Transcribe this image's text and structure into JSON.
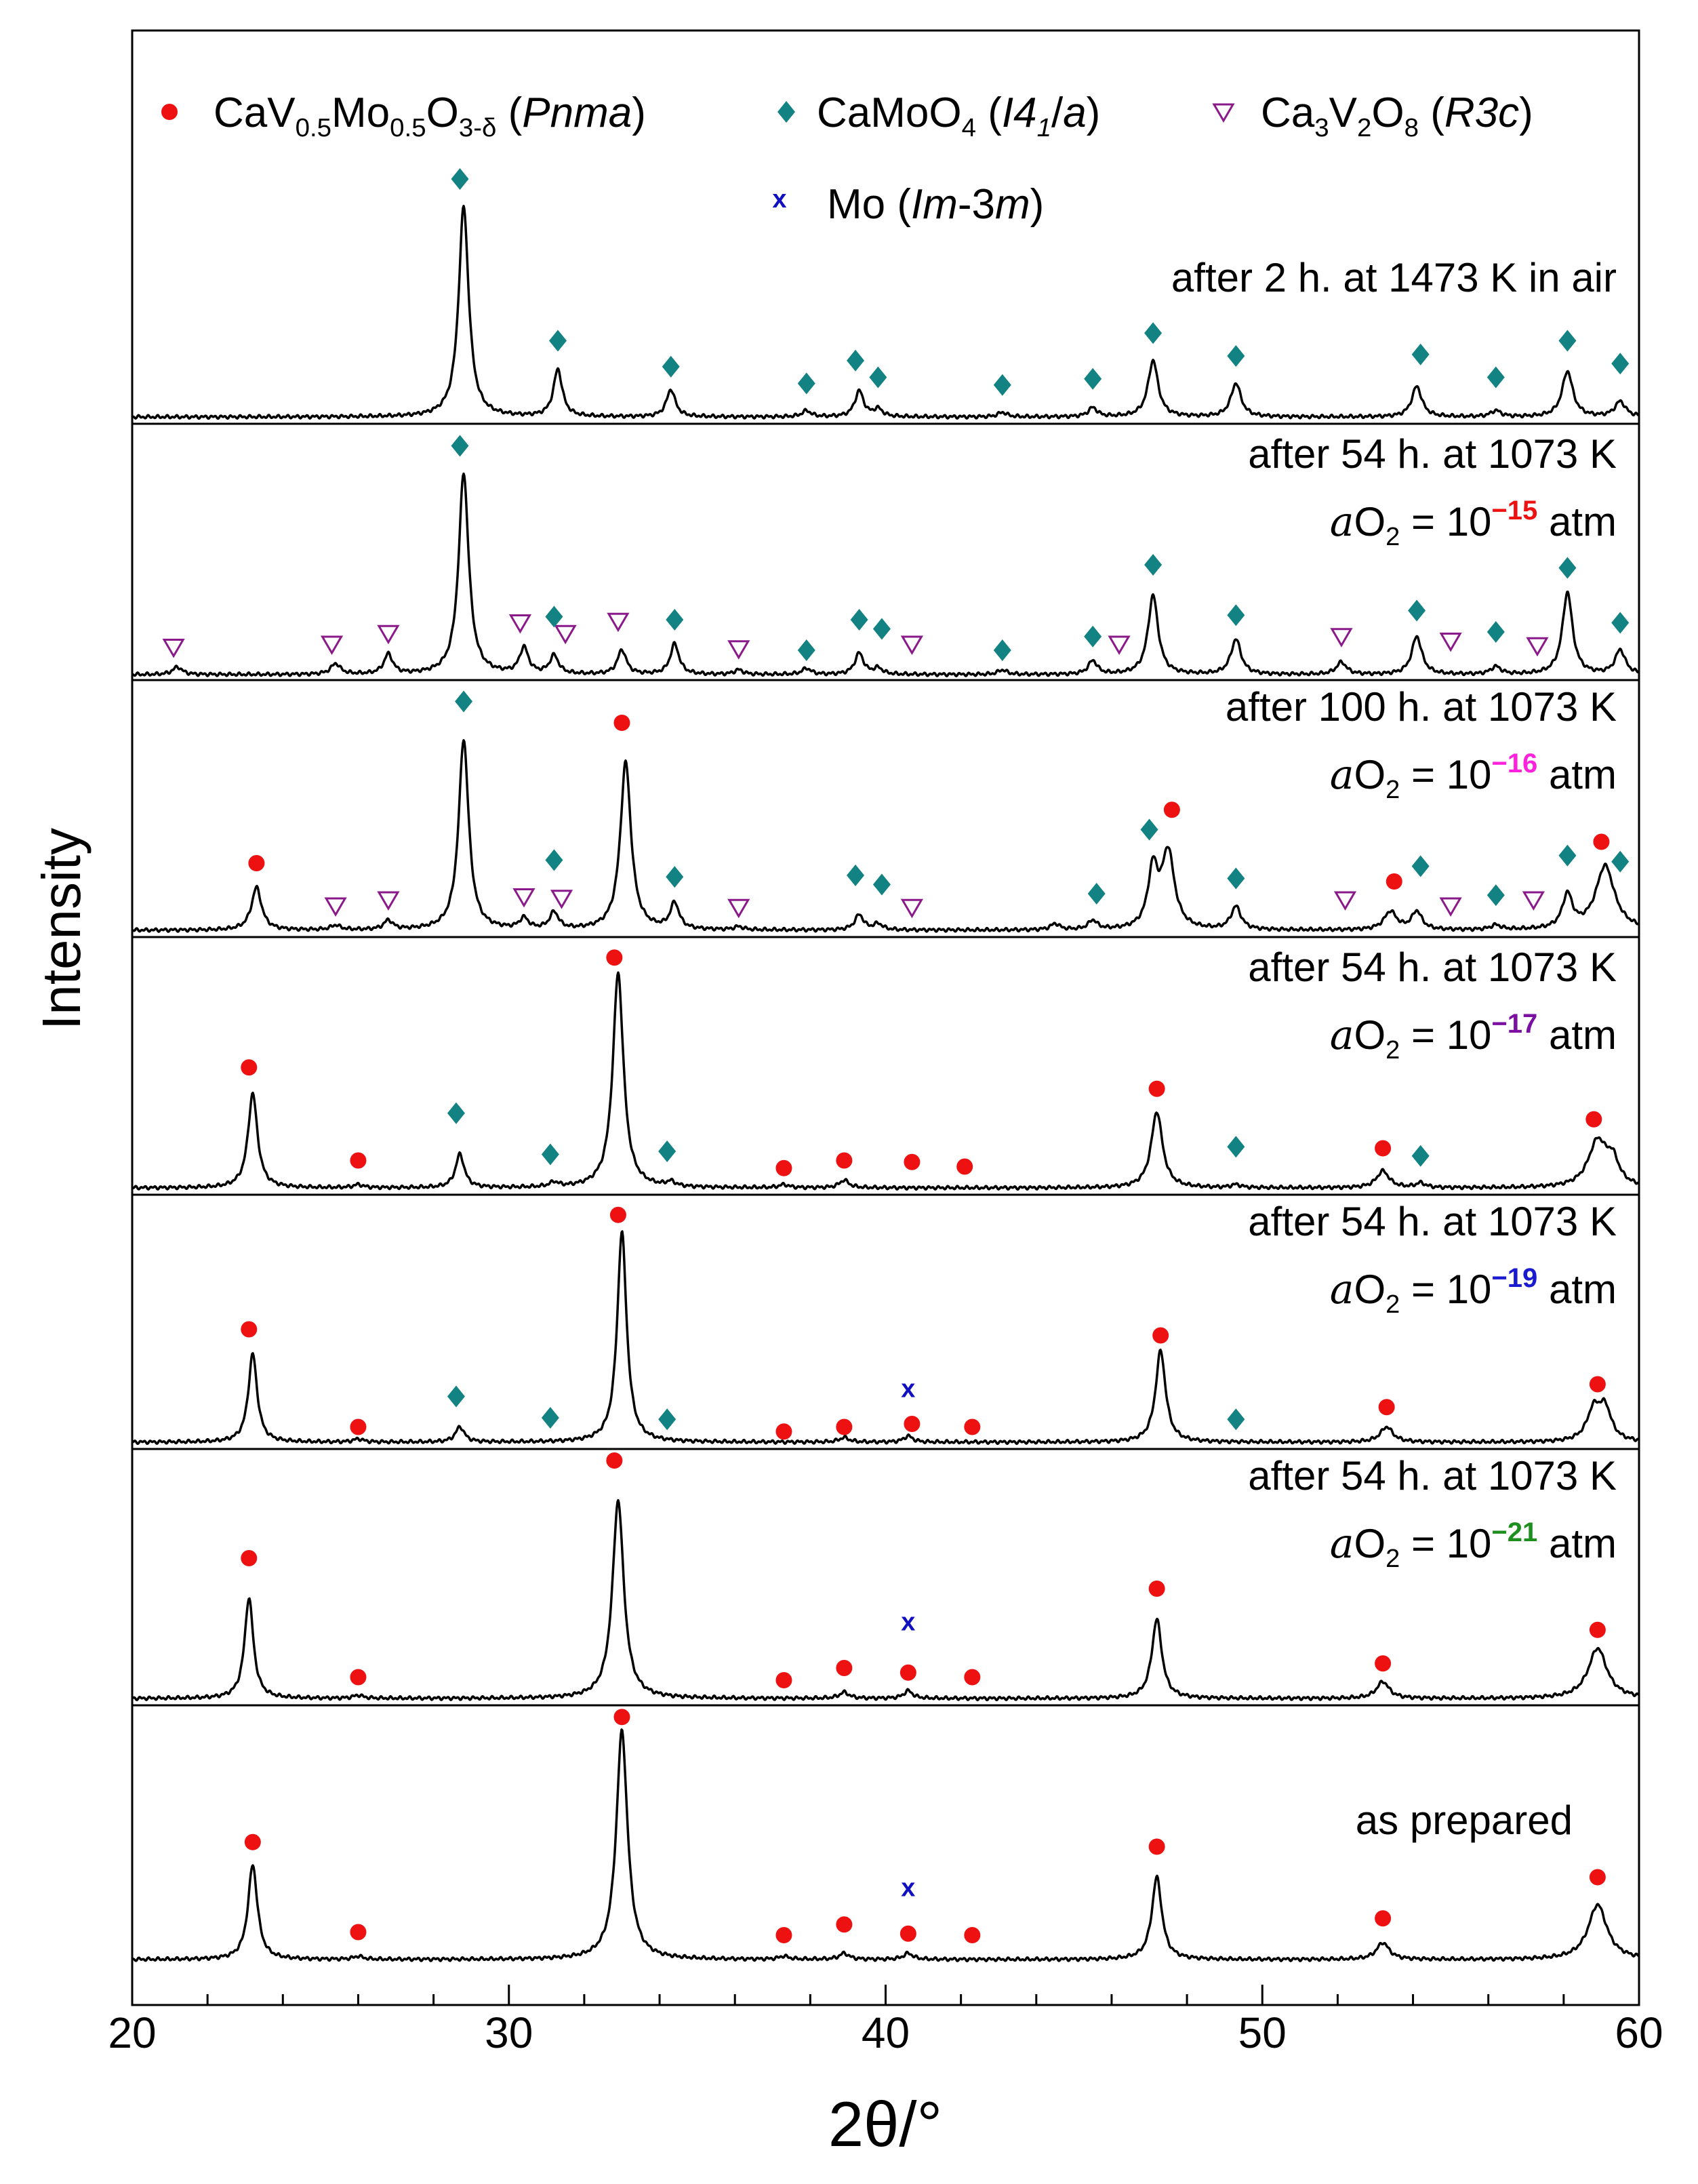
{
  "chart_data": {
    "type": "line",
    "xlabel": "2θ/°",
    "ylabel": "Intensity",
    "xlim": [
      20,
      60
    ],
    "xticks": [
      20,
      30,
      40,
      50,
      60
    ],
    "legend": {
      "placement": "top",
      "entries": [
        {
          "key": "perov",
          "marker": "circle",
          "color": "#ee1111",
          "parts": [
            [
              "CaV",
              ""
            ],
            [
              "0.5",
              "sub"
            ],
            [
              "Mo",
              ""
            ],
            [
              "0.5",
              "sub"
            ],
            [
              "O",
              ""
            ],
            [
              "3-δ",
              "sub"
            ],
            [
              " (",
              ""
            ],
            [
              "Pnma",
              "i"
            ],
            [
              ")",
              ""
            ]
          ]
        },
        {
          "key": "camoo4",
          "marker": "diamond",
          "color": "#128282",
          "parts": [
            [
              "CaMoO",
              ""
            ],
            [
              "4",
              "sub"
            ],
            [
              " (",
              ""
            ],
            [
              "I4",
              "i"
            ],
            [
              "1",
              "isub"
            ],
            [
              "/",
              ""
            ],
            [
              "a",
              "i"
            ],
            [
              ")",
              ""
            ]
          ]
        },
        {
          "key": "cavo",
          "marker": "triangle-down-open",
          "color": "#8a1a8a",
          "parts": [
            [
              "Ca",
              ""
            ],
            [
              "3",
              "sub"
            ],
            [
              "V",
              ""
            ],
            [
              "2",
              "sub"
            ],
            [
              "O",
              ""
            ],
            [
              "8",
              "sub"
            ],
            [
              " (",
              ""
            ],
            [
              "R3c",
              "i"
            ],
            [
              ")",
              ""
            ]
          ]
        },
        {
          "key": "mo",
          "marker": "x",
          "color": "#1010c0",
          "parts": [
            [
              "Mo (",
              ""
            ],
            [
              "Im",
              "i"
            ],
            [
              "-3",
              ""
            ],
            [
              "m",
              "i"
            ],
            [
              ")",
              ""
            ]
          ]
        }
      ]
    },
    "patterns": [
      {
        "label": "after 2 h. at 1473 K in air",
        "peaks": [
          [
            28.8,
            138,
            0.16
          ],
          [
            31.3,
            31,
            0.14
          ],
          [
            34.3,
            18,
            0.14
          ],
          [
            37.9,
            4,
            0.14
          ],
          [
            39.3,
            17,
            0.14
          ],
          [
            39.8,
            5,
            0.14
          ],
          [
            43.1,
            3,
            0.14
          ],
          [
            45.5,
            6,
            0.14
          ],
          [
            47.1,
            37,
            0.16
          ],
          [
            49.3,
            22,
            0.16
          ],
          [
            54.1,
            20,
            0.16
          ],
          [
            56.2,
            4,
            0.16
          ],
          [
            58.1,
            30,
            0.17
          ],
          [
            59.5,
            10,
            0.17
          ]
        ],
        "markers": [
          {
            "phase": "camoo4",
            "x": [
              28.7,
              31.3,
              34.3,
              37.9,
              39.2,
              39.8,
              43.1,
              45.5,
              47.1,
              49.3,
              54.2,
              56.2,
              58.1,
              59.5
            ],
            "y": [
              156,
              50,
              33,
              22,
              37,
              26,
              21,
              25,
              55,
              40,
              41,
              26,
              50,
              35
            ]
          }
        ]
      },
      {
        "label": "after 54 h. at 1073 K",
        "ao2": "10",
        "exp": "−15",
        "exp_color": "#ee1111",
        "peaks": [
          [
            21.2,
            5,
            0.15
          ],
          [
            25.4,
            7,
            0.15
          ],
          [
            26.8,
            13,
            0.14
          ],
          [
            28.8,
            132,
            0.16
          ],
          [
            30.4,
            17,
            0.14
          ],
          [
            31.2,
            12,
            0.14
          ],
          [
            33.0,
            16,
            0.14
          ],
          [
            34.4,
            20,
            0.14
          ],
          [
            36.1,
            3,
            0.14
          ],
          [
            37.9,
            4,
            0.14
          ],
          [
            39.3,
            14,
            0.14
          ],
          [
            39.8,
            4,
            0.14
          ],
          [
            43.1,
            3,
            0.14
          ],
          [
            45.5,
            9,
            0.14
          ],
          [
            47.1,
            52,
            0.16
          ],
          [
            49.3,
            23,
            0.16
          ],
          [
            52.1,
            8,
            0.16
          ],
          [
            54.1,
            25,
            0.16
          ],
          [
            56.2,
            5,
            0.16
          ],
          [
            58.1,
            54,
            0.16
          ],
          [
            59.5,
            16,
            0.16
          ]
        ],
        "markers": [
          {
            "phase": "cavo",
            "x": [
              21.1,
              25.3,
              26.8,
              30.3,
              31.5,
              32.9,
              36.1,
              40.7,
              46.2,
              52.1,
              55.0,
              57.3
            ],
            "y": [
              18,
              20,
              27,
              34,
              27,
              35,
              17,
              20,
              20,
              25,
              22,
              19
            ]
          },
          {
            "phase": "camoo4",
            "x": [
              28.7,
              31.2,
              34.4,
              37.9,
              39.3,
              39.9,
              43.1,
              45.5,
              47.1,
              49.3,
              54.1,
              56.2,
              58.1,
              59.5
            ],
            "y": [
              150,
              38,
              36,
              16,
              36,
              30,
              16,
              25,
              72,
              39,
              42,
              28,
              70,
              34
            ]
          }
        ]
      },
      {
        "label": "after 100 h. at 1073 K",
        "ao2": "10",
        "exp": "−16",
        "exp_color": "#ff22dd",
        "peaks": [
          [
            23.3,
            28,
            0.16
          ],
          [
            25.4,
            3,
            0.15
          ],
          [
            26.8,
            6,
            0.14
          ],
          [
            28.8,
            125,
            0.16
          ],
          [
            30.4,
            7,
            0.14
          ],
          [
            31.2,
            11,
            0.14
          ],
          [
            33.1,
            110,
            0.17
          ],
          [
            34.4,
            17,
            0.14
          ],
          [
            36.1,
            2,
            0.14
          ],
          [
            39.3,
            10,
            0.14
          ],
          [
            39.8,
            4,
            0.14
          ],
          [
            44.5,
            4,
            0.14
          ],
          [
            45.5,
            6,
            0.14
          ],
          [
            47.1,
            38,
            0.16
          ],
          [
            47.5,
            50,
            0.2
          ],
          [
            49.3,
            15,
            0.16
          ],
          [
            53.4,
            12,
            0.2
          ],
          [
            54.1,
            12,
            0.16
          ],
          [
            56.2,
            3,
            0.16
          ],
          [
            58.1,
            22,
            0.16
          ],
          [
            59.1,
            42,
            0.3
          ]
        ],
        "markers": [
          {
            "phase": "perov",
            "x": [
              23.3,
              33.0,
              47.6,
              53.5,
              59.0
            ],
            "y": [
              44,
              136,
              79,
              32,
              58
            ]
          },
          {
            "phase": "cavo",
            "x": [
              25.4,
              26.8,
              30.4,
              31.4,
              36.1,
              40.7,
              52.2,
              55.0,
              57.2
            ],
            "y": [
              16,
              20,
              22,
              21,
              15,
              15,
              20,
              16,
              20
            ]
          },
          {
            "phase": "camoo4",
            "x": [
              28.8,
              31.2,
              34.4,
              39.2,
              39.9,
              45.6,
              47.0,
              49.3,
              54.2,
              56.2,
              58.1,
              59.5
            ],
            "y": [
              150,
              46,
              35,
              36,
              30,
              24,
              66,
              34,
              42,
              23,
              49,
              45
            ]
          }
        ]
      },
      {
        "label": "after 54 h. at 1073 K",
        "ao2": "10",
        "exp": "−17",
        "exp_color": "#7a0fa0",
        "peaks": [
          [
            23.2,
            62,
            0.15
          ],
          [
            26.0,
            2,
            0.15
          ],
          [
            28.7,
            22,
            0.14
          ],
          [
            31.2,
            3,
            0.14
          ],
          [
            32.9,
            141,
            0.17
          ],
          [
            34.3,
            3,
            0.14
          ],
          [
            37.3,
            2,
            0.15
          ],
          [
            38.9,
            5,
            0.15
          ],
          [
            47.2,
            50,
            0.18
          ],
          [
            49.3,
            2,
            0.15
          ],
          [
            53.2,
            11,
            0.2
          ],
          [
            54.2,
            3,
            0.15
          ],
          [
            58.9,
            30,
            0.3
          ],
          [
            59.3,
            15,
            0.2
          ]
        ],
        "markers": [
          {
            "phase": "perov",
            "x": [
              23.1,
              26.0,
              32.8,
              37.3,
              38.9,
              40.7,
              42.1,
              47.2,
              53.2,
              58.8
            ],
            "y": [
              79,
              18,
              151,
              13,
              18,
              17,
              14,
              65,
              26,
              45
            ]
          },
          {
            "phase": "camoo4",
            "x": [
              28.6,
              31.1,
              34.2,
              49.3,
              54.2
            ],
            "y": [
              49,
              22,
              24,
              27,
              21
            ]
          }
        ]
      },
      {
        "label": "after 54 h. at 1073 K",
        "ao2": "10",
        "exp": "−19",
        "exp_color": "#1a1ad0",
        "peaks": [
          [
            23.2,
            58,
            0.14
          ],
          [
            26.0,
            2,
            0.15
          ],
          [
            28.7,
            10,
            0.14
          ],
          [
            33.0,
            138,
            0.15
          ],
          [
            38.9,
            3,
            0.15
          ],
          [
            40.6,
            4,
            0.14
          ],
          [
            47.3,
            60,
            0.16
          ],
          [
            53.3,
            10,
            0.2
          ],
          [
            58.8,
            20,
            0.22
          ],
          [
            59.1,
            20,
            0.2
          ]
        ],
        "markers": [
          {
            "phase": "perov",
            "x": [
              23.1,
              26.0,
              32.9,
              37.3,
              38.9,
              40.7,
              42.3,
              47.3,
              53.3,
              58.9
            ],
            "y": [
              74,
              10,
              149,
              7,
              10,
              12,
              10,
              70,
              23,
              38
            ]
          },
          {
            "phase": "camoo4",
            "x": [
              28.6,
              31.1,
              34.2,
              49.3
            ],
            "y": [
              30,
              16,
              15,
              15
            ]
          },
          {
            "phase": "mo",
            "x": [
              40.6
            ],
            "y": [
              35
            ]
          }
        ]
      },
      {
        "label": "after 54 h. at 1073 K",
        "ao2": "10",
        "exp": "−21",
        "exp_color": "#1e8e1e",
        "peaks": [
          [
            23.1,
            66,
            0.14
          ],
          [
            26.0,
            2,
            0.15
          ],
          [
            32.9,
            130,
            0.18
          ],
          [
            38.9,
            4,
            0.15
          ],
          [
            40.6,
            5,
            0.14
          ],
          [
            47.2,
            52,
            0.16
          ],
          [
            53.2,
            11,
            0.2
          ],
          [
            58.9,
            33,
            0.3
          ]
        ],
        "markers": [
          {
            "phase": "perov",
            "x": [
              23.1,
              26.0,
              32.8,
              37.3,
              38.9,
              40.6,
              42.3,
              47.2,
              53.2,
              58.9
            ],
            "y": [
              92,
              14,
              156,
              12,
              20,
              17,
              14,
              72,
              23,
              45
            ]
          },
          {
            "phase": "mo",
            "x": [
              40.6
            ],
            "y": [
              50
            ]
          }
        ]
      },
      {
        "label": "as prepared",
        "peaks": [
          [
            23.2,
            62,
            0.15
          ],
          [
            26.0,
            2,
            0.15
          ],
          [
            33.0,
            150,
            0.18
          ],
          [
            37.3,
            2,
            0.15
          ],
          [
            38.9,
            4,
            0.15
          ],
          [
            40.6,
            4,
            0.15
          ],
          [
            47.2,
            54,
            0.16
          ],
          [
            53.2,
            11,
            0.2
          ],
          [
            58.9,
            36,
            0.3
          ]
        ],
        "markers": [
          {
            "phase": "perov",
            "x": [
              23.2,
              26.0,
              33.0,
              37.3,
              38.9,
              40.6,
              42.3,
              47.2,
              53.2,
              58.9
            ],
            "y": [
              77,
              18,
              159,
              16,
              23,
              17,
              16,
              74,
              27,
              54
            ]
          },
          {
            "phase": "mo",
            "x": [
              40.6
            ],
            "y": [
              47
            ]
          }
        ]
      }
    ]
  }
}
